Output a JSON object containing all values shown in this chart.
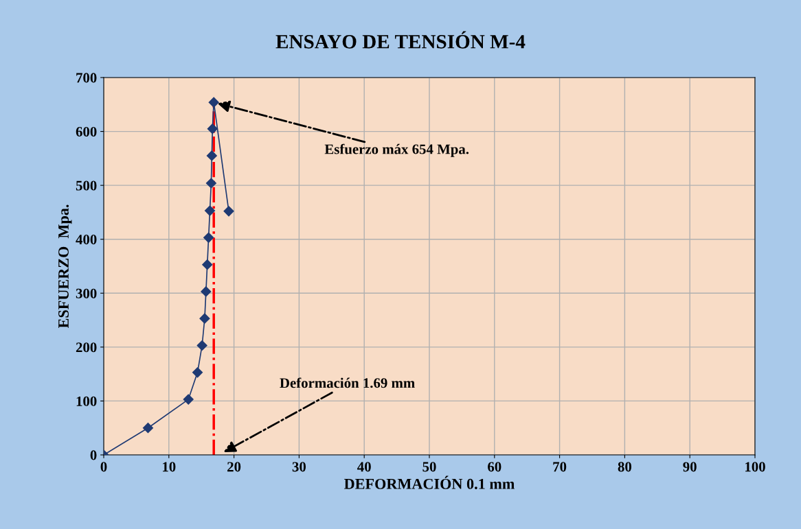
{
  "chart_data": {
    "type": "line",
    "title": "ENSAYO DE TENSIÓN M-4",
    "xlabel": "DEFORMACIÓN 0.1 mm",
    "ylabel": "ESFUERZO  Mpa.",
    "series": [
      {
        "color": "#1f3a73",
        "x": [
          0,
          6.8,
          13.0,
          14.4,
          15.1,
          15.5,
          15.7,
          15.9,
          16.1,
          16.3,
          16.5,
          16.6,
          16.7,
          16.9,
          19.2
        ],
        "values": [
          0,
          50,
          103,
          153,
          203,
          253,
          303,
          353,
          403,
          453,
          504,
          555,
          605,
          654,
          452
        ]
      }
    ],
    "marker": "diamond",
    "xlim": [
      0,
      100
    ],
    "xticks": [
      0,
      10,
      20,
      30,
      40,
      50,
      60,
      70,
      80,
      90,
      100
    ],
    "ylim": [
      0,
      700
    ],
    "yticks": [
      0,
      100,
      200,
      300,
      400,
      500,
      600,
      700
    ],
    "grid": true,
    "legend": false,
    "ref_lines": [
      {
        "axis": "x",
        "value": 16.9,
        "color": "#ff0000",
        "line_style": "dashed"
      }
    ],
    "annotations": [
      {
        "text": "Esfuerzo máx 654 Mpa.",
        "x": 16.9,
        "y": 654
      },
      "Deformación 1.69 mm"
    ]
  }
}
